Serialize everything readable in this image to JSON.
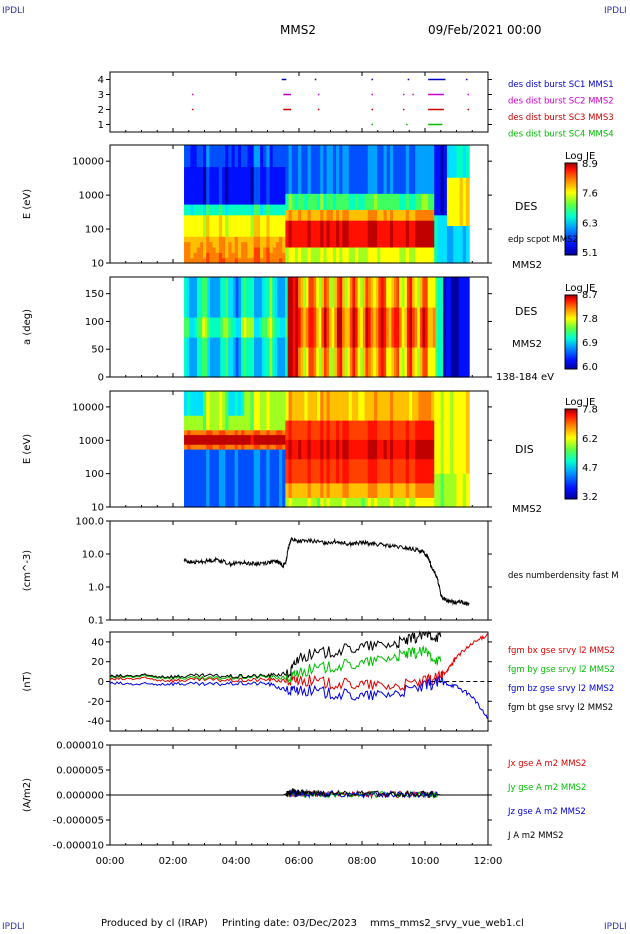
{
  "header": {
    "corner_label": "IPDLI",
    "mission": "MMS2",
    "date": "09/Feb/2021 00:00"
  },
  "footer": {
    "produced_by": "Produced by cl (IRAP)",
    "printing_date": "Printing date: 03/Dec/2023",
    "script_name": "mms_mms2_srvy_vue_web1.cl"
  },
  "colors": {
    "black": "#000000",
    "red": "#e00000",
    "green": "#00c000",
    "blue": "#0000e0",
    "magenta": "#e000e0"
  },
  "chart_data": [
    {
      "type": "scatter",
      "panel": "burst",
      "ylim": [
        0.5,
        4.5
      ],
      "yticks": [
        "1",
        "2",
        "3",
        "4"
      ],
      "legend": [
        {
          "label": "des dist burst SC1 MMS1",
          "color": "#0000cc"
        },
        {
          "label": "des dist burst SC2 MMS2",
          "color": "#cc00cc"
        },
        {
          "label": "des dist burst SC3 MMS3",
          "color": "#cc0000"
        },
        {
          "label": "des dist burst SC4 MMS4",
          "color": "#00bb00"
        }
      ],
      "intervals": [
        {
          "sc": 4,
          "segments": [
            [
              5.45,
              5.6
            ],
            [
              6.5,
              6.55
            ],
            [
              8.3,
              8.35
            ],
            [
              9.45,
              9.5
            ],
            [
              10.1,
              10.65
            ],
            [
              11.3,
              11.33
            ]
          ]
        },
        {
          "sc": 3,
          "segments": [
            [
              2.6,
              2.62
            ],
            [
              5.5,
              5.75
            ],
            [
              6.6,
              6.63
            ],
            [
              8.3,
              8.35
            ],
            [
              9.3,
              9.33
            ],
            [
              9.6,
              9.63
            ],
            [
              10.1,
              10.6
            ],
            [
              11.35,
              11.38
            ]
          ]
        },
        {
          "sc": 2,
          "segments": [
            [
              2.6,
              2.62
            ],
            [
              5.5,
              5.75
            ],
            [
              6.6,
              6.63
            ],
            [
              8.3,
              8.35
            ],
            [
              9.3,
              9.33
            ],
            [
              10.1,
              10.6
            ],
            [
              11.35,
              11.38
            ]
          ]
        },
        {
          "sc": 1,
          "segments": [
            [
              8.3,
              8.33
            ],
            [
              9.4,
              9.43
            ],
            [
              10.1,
              10.55
            ]
          ]
        }
      ]
    },
    {
      "type": "heatmap",
      "panel": "des-energy",
      "ylabel": "E (eV)",
      "yscale": "log",
      "ylim": [
        10,
        30000
      ],
      "yticks": [
        "10",
        "100",
        "1000",
        "10000"
      ],
      "data_range_hours": [
        2.35,
        11.4
      ],
      "label": "DES",
      "sublabel": "edp scpot MMS2",
      "spacecraft": "MMS2",
      "colorbar": {
        "title": "Log JE",
        "ticks": [
          "5.1",
          "6.3",
          "7.6",
          "8.9"
        ]
      }
    },
    {
      "type": "heatmap",
      "panel": "des-pitch",
      "ylabel": "a (deg)",
      "ylim": [
        0,
        180
      ],
      "yticks": [
        "0",
        "50",
        "100",
        "150"
      ],
      "data_range_hours": [
        2.35,
        11.4
      ],
      "label": "DES",
      "sublabel": "MMS2",
      "energy_band": "138-184 eV",
      "colorbar": {
        "title": "Log JE",
        "ticks": [
          "6.0",
          "6.9",
          "7.8",
          "8.7"
        ]
      }
    },
    {
      "type": "heatmap",
      "panel": "dis-energy",
      "ylabel": "E (eV)",
      "yscale": "log",
      "ylim": [
        10,
        30000
      ],
      "yticks": [
        "10",
        "100",
        "1000",
        "10000"
      ],
      "data_range_hours": [
        2.35,
        11.4
      ],
      "label": "DIS",
      "spacecraft": "MMS2",
      "colorbar": {
        "title": "Log JE",
        "ticks": [
          "3.2",
          "4.7",
          "6.2",
          "7.8"
        ]
      }
    },
    {
      "type": "line",
      "panel": "density",
      "ylabel": "(cm^-3)",
      "yscale": "log",
      "ylim": [
        0.1,
        100
      ],
      "yticks": [
        "0.1",
        "1.0",
        "10.0",
        "100.0"
      ],
      "series": [
        {
          "name": "des numberdensity fast M",
          "color": "#000000",
          "x": [
            2.35,
            2.6,
            3.0,
            3.4,
            3.8,
            4.2,
            4.6,
            5.0,
            5.3,
            5.5,
            5.6,
            5.75,
            6.0,
            6.4,
            6.8,
            7.2,
            7.6,
            8.0,
            8.4,
            8.8,
            9.2,
            9.6,
            9.9,
            10.1,
            10.2,
            10.35,
            10.5,
            10.7,
            10.9,
            11.1,
            11.4
          ],
          "y": [
            6.5,
            5.5,
            6.0,
            6.8,
            5.0,
            5.5,
            5.0,
            5.5,
            6.0,
            4.5,
            6.0,
            28,
            24,
            25,
            22,
            24,
            20,
            22,
            20,
            18,
            16,
            14,
            12,
            8,
            4,
            2.2,
            0.5,
            0.4,
            0.35,
            0.35,
            0.3
          ]
        }
      ]
    },
    {
      "type": "line",
      "panel": "magnetic-field",
      "ylabel": "(nT)",
      "ylim": [
        -50,
        50
      ],
      "yticks": [
        "-40",
        "-20",
        "0",
        "20",
        "40"
      ],
      "series": [
        {
          "name": "fgm bx gse srvy l2 MMS2",
          "color": "#e00000",
          "x": [
            0,
            1,
            2,
            3,
            4,
            5,
            5.7,
            6,
            7,
            8,
            9,
            10,
            10.5,
            10.8,
            11,
            11.5,
            12
          ],
          "y": [
            2,
            3,
            1,
            2,
            1,
            2,
            0,
            2,
            -2,
            -3,
            -5,
            0,
            5,
            15,
            25,
            38,
            48
          ]
        },
        {
          "name": "fgm by gse srvy l2 MMS2",
          "color": "#00c000",
          "x": [
            0,
            1,
            2,
            3,
            4,
            5,
            5.7,
            6,
            7,
            8,
            9,
            9.5,
            10,
            10.5
          ],
          "y": [
            4,
            5,
            4,
            3,
            4,
            5,
            3,
            10,
            15,
            18,
            25,
            28,
            30,
            20
          ]
        },
        {
          "name": "fgm bz gse srvy l2 MMS2",
          "color": "#0000e0",
          "x": [
            0,
            1,
            2,
            3,
            4,
            5,
            5.7,
            6,
            7,
            8,
            9,
            10,
            10.5,
            11,
            11.5,
            12
          ],
          "y": [
            -2,
            -3,
            -2,
            -3,
            -2,
            -2,
            -10,
            -8,
            -12,
            -15,
            -12,
            -5,
            0,
            -5,
            -15,
            -38
          ]
        },
        {
          "name": "fgm bt gse srvy l2 MMS2",
          "color": "#000000",
          "x": [
            0,
            1,
            2,
            3,
            4,
            5,
            5.7,
            6,
            7,
            8,
            9,
            9.5,
            10,
            10.5
          ],
          "y": [
            5,
            6,
            5,
            6,
            5,
            6,
            8,
            25,
            30,
            35,
            38,
            42,
            48,
            45
          ]
        }
      ],
      "reference_line": 0
    },
    {
      "type": "line",
      "panel": "current-density",
      "ylabel": "(A/m2)",
      "ylim": [
        -1e-05,
        1e-05
      ],
      "yticks": [
        "-0.000010",
        "-0.000005",
        "0.000000",
        "0.000005",
        "0.000010"
      ],
      "series": [
        {
          "name": "Jx gse A m2 MMS2",
          "color": "#e00000"
        },
        {
          "name": "Jy gse A m2 MMS2",
          "color": "#00c000"
        },
        {
          "name": "Jz gse A m2 MMS2",
          "color": "#0000e0"
        },
        {
          "name": "J A m2 MMS2",
          "color": "#000000"
        }
      ],
      "x": [
        0,
        2.4,
        5.5,
        5.8,
        6.0,
        6.5,
        7.0,
        8.0,
        9.0,
        10.0,
        10.5,
        12
      ],
      "y": [
        0,
        0,
        0,
        8e-07,
        5e-07,
        4e-07,
        3e-07,
        2e-07,
        2e-07,
        3e-07,
        0,
        0
      ]
    }
  ],
  "xaxis": {
    "xlim": [
      0,
      12
    ],
    "ticks": [
      "00:00",
      "02:00",
      "04:00",
      "06:00",
      "08:00",
      "10:00",
      "12:00"
    ]
  }
}
